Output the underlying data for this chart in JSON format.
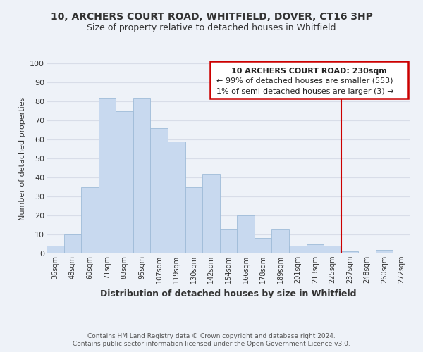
{
  "title": "10, ARCHERS COURT ROAD, WHITFIELD, DOVER, CT16 3HP",
  "subtitle": "Size of property relative to detached houses in Whitfield",
  "xlabel": "Distribution of detached houses by size in Whitfield",
  "ylabel": "Number of detached properties",
  "bar_labels": [
    "36sqm",
    "48sqm",
    "60sqm",
    "71sqm",
    "83sqm",
    "95sqm",
    "107sqm",
    "119sqm",
    "130sqm",
    "142sqm",
    "154sqm",
    "166sqm",
    "178sqm",
    "189sqm",
    "201sqm",
    "213sqm",
    "225sqm",
    "237sqm",
    "248sqm",
    "260sqm",
    "272sqm"
  ],
  "bar_heights": [
    4,
    10,
    35,
    82,
    75,
    82,
    66,
    59,
    35,
    42,
    13,
    20,
    8,
    13,
    4,
    5,
    4,
    1,
    0,
    2,
    0
  ],
  "bar_color": "#c8d9ef",
  "bar_edge_color": "#9fbcd8",
  "vline_x": 16.5,
  "vline_color": "#cc0000",
  "annotation_title": "10 ARCHERS COURT ROAD: 230sqm",
  "annotation_line1": "← 99% of detached houses are smaller (553)",
  "annotation_line2": "1% of semi-detached houses are larger (3) →",
  "annotation_box_edge": "#cc0000",
  "ylim": [
    0,
    100
  ],
  "yticks": [
    0,
    10,
    20,
    30,
    40,
    50,
    60,
    70,
    80,
    90,
    100
  ],
  "footer_line1": "Contains HM Land Registry data © Crown copyright and database right 2024.",
  "footer_line2": "Contains public sector information licensed under the Open Government Licence v3.0.",
  "bg_color": "#eef2f8",
  "grid_color": "#d8dde8",
  "title_fontsize": 10,
  "subtitle_fontsize": 9
}
